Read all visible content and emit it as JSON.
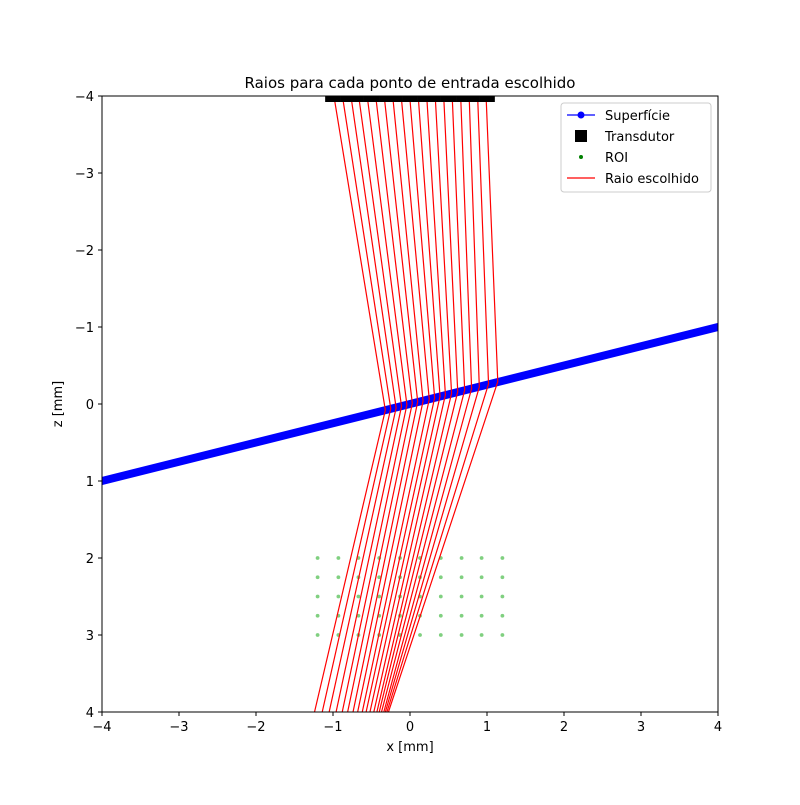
{
  "chart_data": {
    "type": "line",
    "title": "Raios para cada ponto de entrada escolhido",
    "xlabel": "x [mm]",
    "ylabel": "z [mm]",
    "xlim": [
      -4,
      4
    ],
    "ylim": [
      4,
      -4
    ],
    "y_inverted": true,
    "grid": false,
    "legend_placement": "upper-right",
    "xticks": [
      "−4",
      "−3",
      "−2",
      "−1",
      "0",
      "1",
      "2",
      "3",
      "4"
    ],
    "xtick_values": [
      -4,
      -3,
      -2,
      -1,
      0,
      1,
      2,
      3,
      4
    ],
    "yticks": [
      "−4",
      "−3",
      "−2",
      "−1",
      "0",
      "1",
      "2",
      "3",
      "4"
    ],
    "ytick_values": [
      -4,
      -3,
      -2,
      -1,
      0,
      1,
      2,
      3,
      4
    ],
    "legend": [
      "Superfície",
      "Transdutor",
      "ROI",
      "Raio escolhido"
    ],
    "colors": {
      "surface": "#0000ff",
      "transducer": "#000000",
      "roi": "#80d080",
      "ray": "#ff0000"
    },
    "series": [
      {
        "name": "Superfície",
        "kind": "line-marker",
        "points": [
          [
            -4,
            1
          ],
          [
            4,
            -1
          ]
        ],
        "note": "surface line z = -x/4"
      },
      {
        "name": "Transdutor",
        "kind": "square-marker",
        "x": [
          -1.05,
          -0.95,
          -0.85,
          -0.75,
          -0.65,
          -0.55,
          -0.45,
          -0.35,
          -0.25,
          -0.15,
          -0.05,
          0.05,
          0.15,
          0.25,
          0.35,
          0.45,
          0.55,
          0.65,
          0.75,
          0.85,
          0.95,
          1.05
        ],
        "z": -4
      },
      {
        "name": "ROI",
        "kind": "scatter",
        "x": [
          -1.2,
          -0.93,
          -0.67,
          -0.4,
          -0.13,
          0.13,
          0.4,
          0.67,
          0.93,
          1.2
        ],
        "z": [
          2.0,
          2.25,
          2.5,
          2.75,
          3.0
        ]
      },
      {
        "name": "Raio escolhido",
        "kind": "polyline",
        "rays": [
          [
            [
              -0.98,
              -3.95
            ],
            [
              -0.32,
              0.08
            ],
            [
              -1.24,
              4.0
            ]
          ],
          [
            [
              -0.87,
              -3.95
            ],
            [
              -0.25,
              0.06
            ],
            [
              -1.14,
              4.0
            ]
          ],
          [
            [
              -0.76,
              -3.95
            ],
            [
              -0.18,
              0.05
            ],
            [
              -1.05,
              4.0
            ]
          ],
          [
            [
              -0.66,
              -3.95
            ],
            [
              -0.11,
              0.03
            ],
            [
              -0.96,
              4.0
            ]
          ],
          [
            [
              -0.55,
              -3.95
            ],
            [
              -0.04,
              0.01
            ],
            [
              -0.88,
              4.0
            ]
          ],
          [
            [
              -0.44,
              -3.95
            ],
            [
              0.03,
              -0.01
            ],
            [
              -0.81,
              4.0
            ]
          ],
          [
            [
              -0.33,
              -3.95
            ],
            [
              0.1,
              -0.03
            ],
            [
              -0.74,
              4.0
            ]
          ],
          [
            [
              -0.22,
              -3.95
            ],
            [
              0.17,
              -0.04
            ],
            [
              -0.68,
              4.0
            ]
          ],
          [
            [
              -0.11,
              -3.95
            ],
            [
              0.25,
              -0.06
            ],
            [
              -0.62,
              4.0
            ]
          ],
          [
            [
              0.0,
              -3.95
            ],
            [
              0.32,
              -0.08
            ],
            [
              -0.57,
              4.0
            ]
          ],
          [
            [
              0.11,
              -3.95
            ],
            [
              0.39,
              -0.1
            ],
            [
              -0.52,
              4.0
            ]
          ],
          [
            [
              0.22,
              -3.95
            ],
            [
              0.46,
              -0.12
            ],
            [
              -0.47,
              4.0
            ]
          ],
          [
            [
              0.33,
              -3.95
            ],
            [
              0.54,
              -0.14
            ],
            [
              -0.43,
              4.0
            ]
          ],
          [
            [
              0.44,
              -3.95
            ],
            [
              0.62,
              -0.16
            ],
            [
              -0.4,
              4.0
            ]
          ],
          [
            [
              0.55,
              -3.95
            ],
            [
              0.71,
              -0.18
            ],
            [
              -0.37,
              4.0
            ]
          ],
          [
            [
              0.66,
              -3.95
            ],
            [
              0.8,
              -0.2
            ],
            [
              -0.34,
              4.0
            ]
          ],
          [
            [
              0.77,
              -3.95
            ],
            [
              0.9,
              -0.22
            ],
            [
              -0.32,
              4.0
            ]
          ],
          [
            [
              0.88,
              -3.95
            ],
            [
              1.02,
              -0.26
            ],
            [
              -0.3,
              4.0
            ]
          ],
          [
            [
              0.99,
              -3.95
            ],
            [
              1.14,
              -0.29
            ],
            [
              -0.28,
              4.0
            ]
          ]
        ]
      }
    ]
  }
}
